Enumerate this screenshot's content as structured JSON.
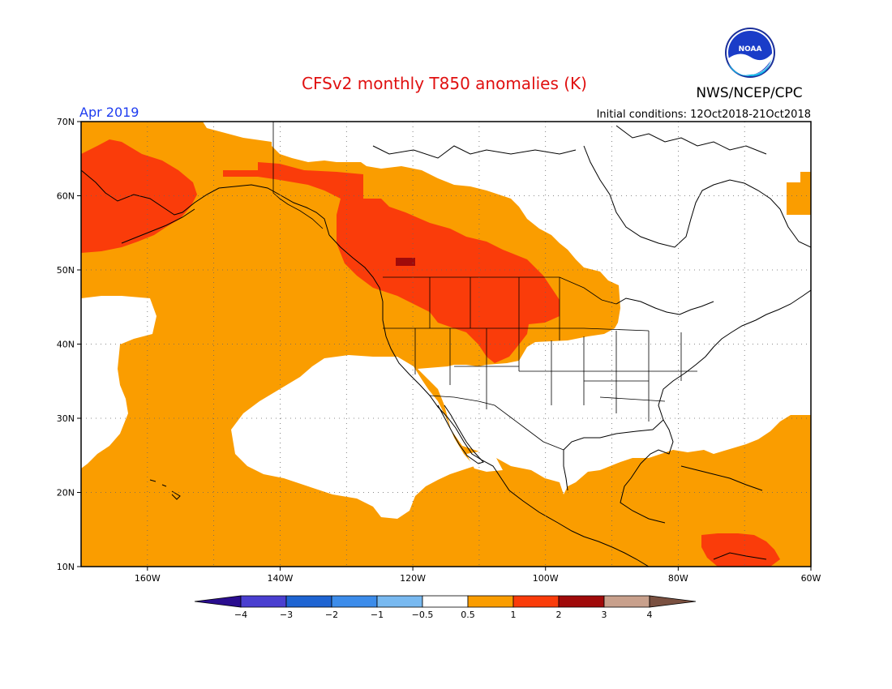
{
  "header": {
    "title": "CFSv2 monthly T850 anomalies (K)",
    "agency": "NWS/NCEP/CPC",
    "logo_text": "NOAA",
    "valid_month": "Apr 2019",
    "initial_conditions": "Initial conditions: 12Oct2018-21Oct2018"
  },
  "map": {
    "lon_range": [
      -170,
      -60
    ],
    "lat_range": [
      10,
      70
    ],
    "lat_ticks": [
      {
        "value": 70,
        "label": "70N"
      },
      {
        "value": 60,
        "label": "60N"
      },
      {
        "value": 50,
        "label": "50N"
      },
      {
        "value": 40,
        "label": "40N"
      },
      {
        "value": 30,
        "label": "30N"
      },
      {
        "value": 20,
        "label": "20N"
      },
      {
        "value": 10,
        "label": "10N"
      }
    ],
    "lon_ticks": [
      {
        "value": -160,
        "label": "160W"
      },
      {
        "value": -140,
        "label": "140W"
      },
      {
        "value": -120,
        "label": "120W"
      },
      {
        "value": -100,
        "label": "100W"
      },
      {
        "value": -80,
        "label": "80W"
      },
      {
        "value": -60,
        "label": "60W"
      }
    ],
    "grid": "dotted"
  },
  "colorbar": {
    "labels": [
      "-4",
      "-3",
      "-2",
      "-1",
      "-0.5",
      "0.5",
      "1",
      "2",
      "3",
      "4"
    ],
    "colors": [
      "#2a0d8f",
      "#4a3fd0",
      "#1e64d2",
      "#3c8cea",
      "#78b9f0",
      "#ffffff",
      "#fa9d00",
      "#fa3c0a",
      "#a00a0a",
      "#c8a08c",
      "#7a5040"
    ]
  },
  "colors": {
    "title": "#e01010",
    "month_label": "#1e3cf0",
    "orange": "#fa9d00",
    "red": "#fa3c0a",
    "darkred": "#a00a0a"
  }
}
